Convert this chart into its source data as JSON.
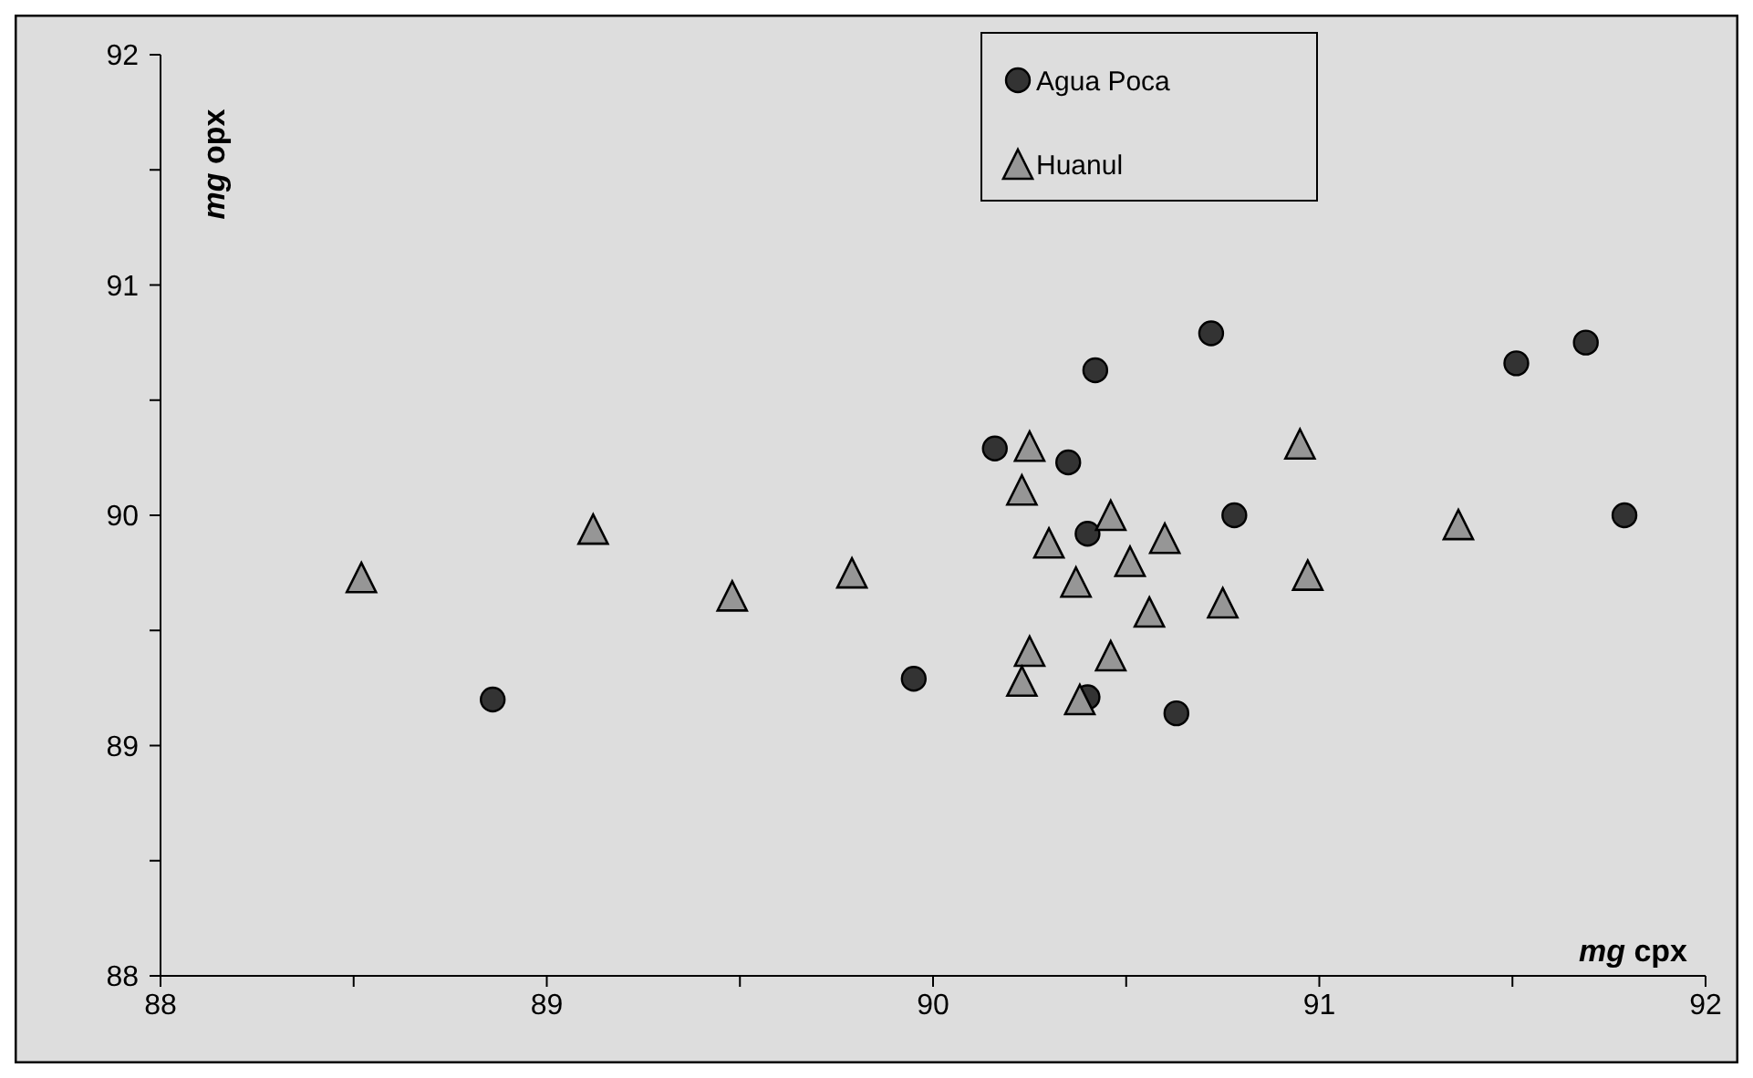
{
  "chart_data": {
    "type": "scatter",
    "xlabel": "mg cpx",
    "ylabel": "mg opx",
    "xlim": [
      88,
      92
    ],
    "ylim": [
      88,
      92
    ],
    "xticks": [
      88,
      {
        "value": 88.5,
        "label": null
      },
      89,
      {
        "value": 89.5,
        "label": null
      },
      90,
      {
        "value": 90.5,
        "label": null
      },
      91,
      {
        "value": 91.5,
        "label": null
      },
      92
    ],
    "yticks": [
      88,
      {
        "value": 88.5,
        "label": null
      },
      89,
      {
        "value": 89.5,
        "label": null
      },
      90,
      {
        "value": 90.5,
        "label": null
      },
      91,
      {
        "value": 91.5,
        "label": null
      },
      92
    ],
    "grid": false,
    "legend": "top",
    "series": [
      {
        "name": "Agua Poca",
        "color": "#333333",
        "marker": "circle",
        "x": [
          90.16,
          90.35,
          90.4,
          90.78,
          89.95,
          90.4,
          90.63,
          88.86,
          91.79,
          90.42,
          90.72,
          91.51,
          91.69
        ],
        "values": [
          90.29,
          90.23,
          89.92,
          90.0,
          89.29,
          89.21,
          89.14,
          89.2,
          90.0,
          90.63,
          90.79,
          90.66,
          90.75
        ]
      },
      {
        "name": "Huanul",
        "color": "#969696",
        "marker": "triangle",
        "x": [
          88.52,
          89.12,
          89.48,
          89.79,
          90.25,
          90.23,
          90.46,
          90.3,
          90.6,
          90.51,
          90.37,
          90.56,
          90.75,
          90.25,
          90.23,
          90.46,
          90.38,
          90.95,
          90.97,
          91.36
        ],
        "values": [
          89.73,
          89.94,
          89.65,
          89.75,
          90.3,
          90.11,
          90.0,
          89.88,
          89.9,
          89.8,
          89.71,
          89.58,
          89.62,
          89.41,
          89.28,
          89.39,
          89.2,
          90.31,
          89.74,
          89.96
        ]
      }
    ]
  }
}
